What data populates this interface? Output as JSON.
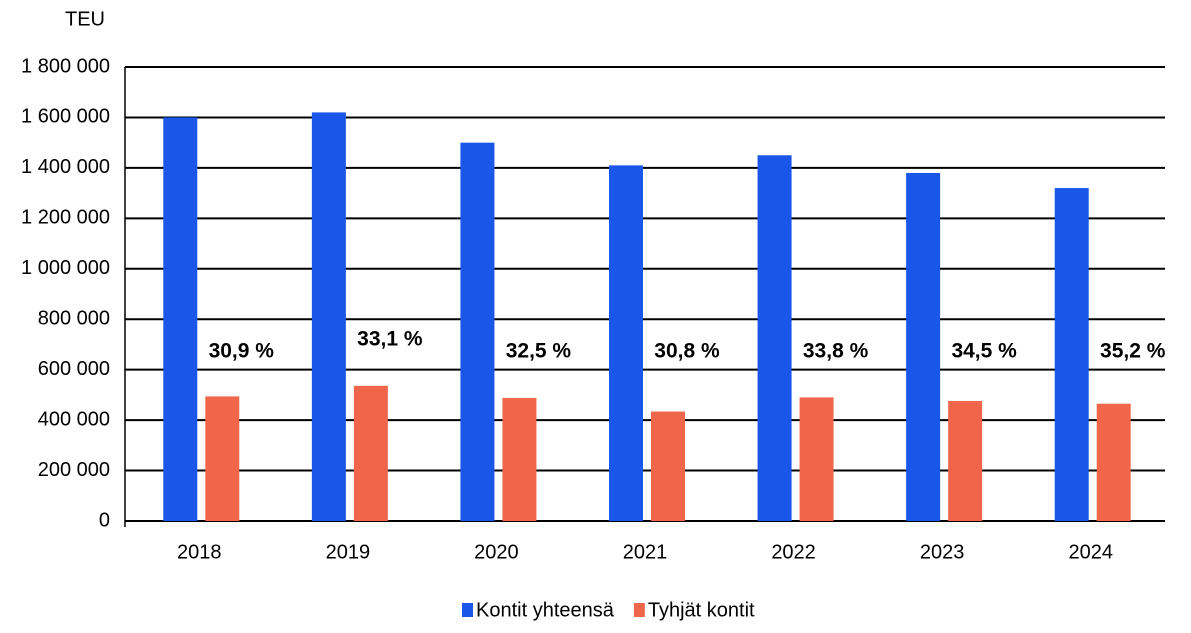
{
  "chart_data": {
    "type": "bar",
    "y_label": "TEU",
    "categories": [
      "2018",
      "2019",
      "2020",
      "2021",
      "2022",
      "2023",
      "2024"
    ],
    "series": [
      {
        "name": "Kontit yhteensä",
        "color": "#1a56e8",
        "values": [
          1600000,
          1620000,
          1500000,
          1410000,
          1450000,
          1380000,
          1320000
        ]
      },
      {
        "name": "Tyhjät kontit",
        "color": "#f0664a",
        "values": [
          494000,
          536000,
          488000,
          434000,
          490000,
          476000,
          465000
        ]
      }
    ],
    "annotations": [
      "30,9 %",
      "33,1 %",
      "32,5 %",
      "30,8 %",
      "33,8 %",
      "34,5 %",
      "35,2 %"
    ],
    "ylim": [
      0,
      1800000
    ],
    "yticks": [
      0,
      {
        "value": 200000,
        "label": "200 000"
      },
      {
        "value": 400000,
        "label": "400 000"
      },
      {
        "value": 600000,
        "label": "600 000"
      },
      {
        "value": 800000,
        "label": "800 000"
      },
      {
        "value": 1000000,
        "label": "1 000 000"
      },
      {
        "value": 1200000,
        "label": "1 200 000"
      },
      {
        "value": 1400000,
        "label": "1 400 000"
      },
      {
        "value": 1600000,
        "label": "1 600 000"
      },
      {
        "value": 1800000,
        "label": "1 800 000"
      }
    ],
    "grid": true,
    "legend": "bottom"
  }
}
